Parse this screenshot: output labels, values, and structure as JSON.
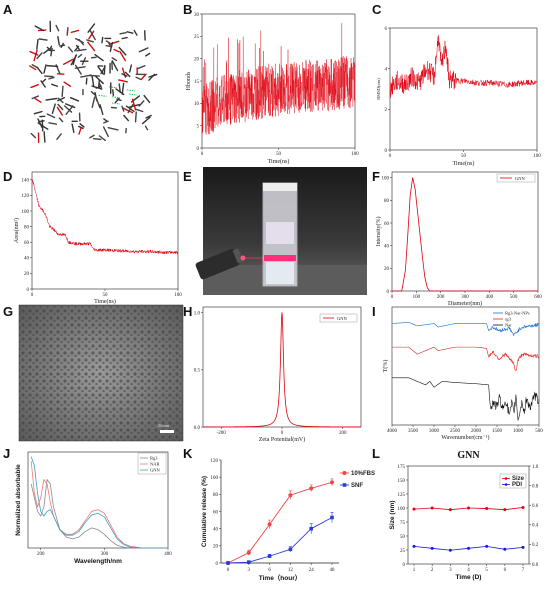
{
  "panels": {
    "A": {
      "label": "A"
    },
    "B": {
      "label": "B",
      "xlabel": "Time(ns)",
      "ylabel": "Hbonds",
      "xticks": [
        "0",
        "50",
        "100"
      ],
      "yticks": [
        "0",
        "5",
        "10",
        "15",
        "20",
        "25",
        "30"
      ]
    },
    "C": {
      "label": "C",
      "xlabel": "Time(ns)",
      "ylabel": "RMSD(nm)",
      "xticks": [
        "0",
        "50",
        "100"
      ],
      "yticks": [
        "0",
        "2",
        "4",
        "6"
      ]
    },
    "D": {
      "label": "D",
      "xlabel": "Time(ns)",
      "ylabel": "Area(nm²)",
      "xticks": [
        "0",
        "50",
        "100"
      ],
      "yticks": [
        "0",
        "20",
        "40",
        "60",
        "80",
        "100",
        "120",
        "140"
      ]
    },
    "E": {
      "label": "E"
    },
    "F": {
      "label": "F",
      "xlabel": "Diameter(nm)",
      "ylabel": "Intensity(%)",
      "legend": "GNN",
      "xticks": [
        "0",
        "100",
        "200",
        "300",
        "400",
        "500",
        "600"
      ],
      "yticks": [
        "0",
        "20",
        "40",
        "60",
        "80",
        "100"
      ]
    },
    "G": {
      "label": "G",
      "scalebar": "20 nm"
    },
    "H": {
      "label": "H",
      "xlabel": "Zeta Potential(mV)",
      "legend": "GNN",
      "xticks": [
        "-200",
        "0",
        "200"
      ],
      "yticks": [
        "0.0",
        "0.5",
        "1.0"
      ]
    },
    "I": {
      "label": "I",
      "xlabel": "Wavenumber(cm⁻¹)",
      "ylabel": "T(%)",
      "legend": [
        "Rg3-Nar-NPs",
        "rg3",
        "Nar"
      ],
      "xticks": [
        "4000",
        "3500",
        "3000",
        "2500",
        "2000",
        "1500",
        "1000",
        "500"
      ]
    },
    "J": {
      "label": "J",
      "xlabel": "Wavelength/nm",
      "ylabel": "Normalized absorbable",
      "legend": [
        "Rg3",
        "NAR",
        "GNN"
      ],
      "xticks": [
        "200",
        "300",
        "400"
      ]
    },
    "K": {
      "label": "K",
      "xlabel": "Time（hour）",
      "ylabel": "Cumulative release (%)",
      "legend": [
        "10%FBS",
        "SNF"
      ],
      "xticks": [
        "0",
        "3",
        "6",
        "12",
        "24",
        "48"
      ],
      "yticks": [
        "0",
        "20",
        "40",
        "60",
        "80",
        "100",
        "120"
      ]
    },
    "L": {
      "label": "L",
      "title": "GNN",
      "xlabel": "Time (D)",
      "ylabel": "Size (nm)",
      "legend": [
        "Size",
        "PDI"
      ],
      "xticks": [
        "1",
        "2",
        "3",
        "4",
        "5",
        "6",
        "7"
      ],
      "yticks_left": [
        "0",
        "25",
        "50",
        "75",
        "100",
        "125",
        "150",
        "175"
      ],
      "yticks_right": [
        "0.0",
        "0.2",
        "0.4",
        "0.6",
        "0.8",
        "1.0"
      ]
    }
  },
  "colors": {
    "red": "#e0000f",
    "blue": "#1a1ad6",
    "fbs": "#f04646",
    "snf": "#2a3fd6",
    "ir_blue": "#1e6fd9",
    "ir_red": "#e62020",
    "ir_black": "#111111",
    "uv_rg3": "#8a8a8a",
    "uv_nar": "#f07878",
    "uv_gnn": "#3aa0c0"
  },
  "chart_data": [
    {
      "panel": "B",
      "type": "line",
      "x": [
        0,
        10,
        20,
        30,
        40,
        50,
        60,
        70,
        80,
        90,
        100
      ],
      "y": [
        8,
        10,
        11,
        12,
        12.5,
        13,
        13.5,
        14,
        14,
        14.5,
        15
      ],
      "xlim": [
        0,
        100
      ],
      "ylim": [
        0,
        30
      ],
      "noise_band": 6
    },
    {
      "panel": "C",
      "type": "line",
      "x": [
        0,
        5,
        10,
        15,
        20,
        25,
        30,
        33,
        35,
        38,
        40,
        45,
        50,
        60,
        70,
        80,
        90,
        100
      ],
      "y": [
        3.0,
        3.4,
        3.2,
        3.6,
        3.3,
        4.0,
        3.6,
        5.6,
        4.0,
        5.2,
        3.5,
        3.4,
        3.4,
        3.3,
        3.3,
        3.2,
        3.3,
        3.3
      ],
      "xlim": [
        0,
        100
      ],
      "ylim": [
        0,
        6
      ]
    },
    {
      "panel": "D",
      "type": "line",
      "x": [
        0,
        1,
        3,
        5,
        8,
        10,
        12,
        15,
        18,
        20,
        23,
        25,
        28,
        30,
        35,
        40,
        42,
        45,
        50,
        60,
        70,
        80,
        90,
        100
      ],
      "y": [
        140,
        135,
        120,
        105,
        100,
        92,
        80,
        76,
        70,
        70,
        69,
        60,
        59,
        58,
        58,
        58,
        51,
        50,
        50,
        49,
        48,
        48,
        47,
        47
      ],
      "xlim": [
        0,
        100
      ],
      "ylim": [
        0,
        150
      ]
    },
    {
      "panel": "F",
      "type": "line",
      "x": [
        0,
        40,
        55,
        65,
        75,
        85,
        95,
        105,
        115,
        125,
        135,
        145,
        155,
        600
      ],
      "y": [
        0,
        0,
        18,
        50,
        85,
        100,
        90,
        70,
        50,
        30,
        12,
        3,
        0,
        0
      ],
      "xlim": [
        0,
        600
      ],
      "ylim": [
        0,
        105
      ]
    },
    {
      "panel": "H",
      "type": "line",
      "x": [
        -260,
        -40,
        -20,
        -10,
        -5,
        0,
        5,
        10,
        20,
        40,
        260
      ],
      "y": [
        0,
        0.01,
        0.05,
        0.2,
        0.55,
        1.0,
        0.55,
        0.2,
        0.05,
        0.01,
        0
      ],
      "xlim": [
        -260,
        260
      ],
      "ylim": [
        0,
        1.05
      ]
    },
    {
      "panel": "I",
      "type": "line",
      "series": [
        {
          "name": "Rg3-Nar-NPs",
          "x": [
            4000,
            3600,
            3400,
            3000,
            2900,
            2500,
            2000,
            1750,
            1700,
            1600,
            1450,
            1200,
            1100,
            1000,
            900,
            700,
            500
          ],
          "y": [
            0.86,
            0.87,
            0.84,
            0.86,
            0.83,
            0.86,
            0.86,
            0.86,
            0.8,
            0.83,
            0.8,
            0.82,
            0.76,
            0.8,
            0.83,
            0.84,
            0.85
          ]
        },
        {
          "name": "rg3",
          "x": [
            4000,
            3600,
            3400,
            3000,
            2900,
            2500,
            2000,
            1750,
            1700,
            1600,
            1450,
            1300,
            1100,
            1050,
            1000,
            900,
            700,
            500
          ],
          "y": [
            0.66,
            0.66,
            0.6,
            0.66,
            0.63,
            0.66,
            0.66,
            0.65,
            0.58,
            0.62,
            0.56,
            0.6,
            0.52,
            0.45,
            0.55,
            0.6,
            0.59,
            0.58
          ]
        },
        {
          "name": "Nar",
          "x": [
            4000,
            3600,
            3200,
            3100,
            3000,
            2800,
            2500,
            2000,
            1700,
            1640,
            1600,
            1500,
            1450,
            1350,
            1300,
            1200,
            1150,
            1100,
            1050,
            1000,
            900,
            850,
            800,
            700,
            600,
            500
          ],
          "y": [
            0.4,
            0.4,
            0.34,
            0.37,
            0.32,
            0.37,
            0.36,
            0.35,
            0.34,
            0.12,
            0.2,
            0.15,
            0.24,
            0.13,
            0.22,
            0.08,
            0.18,
            0.1,
            0.25,
            0.05,
            0.2,
            0.1,
            0.22,
            0.15,
            0.25,
            0.2
          ]
        }
      ],
      "xlim": [
        4000,
        500
      ],
      "ylim": [
        0,
        1
      ]
    },
    {
      "panel": "J",
      "type": "line",
      "series": [
        {
          "name": "Rg3",
          "x": [
            185,
            190,
            195,
            200,
            205,
            210,
            215,
            220,
            230,
            240,
            250,
            260,
            270,
            280,
            290,
            300,
            310,
            320,
            330,
            340,
            360,
            380,
            400
          ],
          "y": [
            0.7,
            0.55,
            0.4,
            0.35,
            0.45,
            0.75,
            0.7,
            0.45,
            0.2,
            0.12,
            0.1,
            0.12,
            0.18,
            0.22,
            0.2,
            0.15,
            0.08,
            0.03,
            0.01,
            0.0,
            0.0,
            0.0,
            0.0
          ]
        },
        {
          "name": "NAR",
          "x": [
            185,
            190,
            195,
            200,
            205,
            210,
            215,
            220,
            230,
            240,
            250,
            260,
            270,
            280,
            290,
            300,
            310,
            320,
            330,
            340,
            360,
            380,
            400
          ],
          "y": [
            0.95,
            0.6,
            0.45,
            0.55,
            0.75,
            0.7,
            0.5,
            0.35,
            0.2,
            0.15,
            0.15,
            0.2,
            0.3,
            0.4,
            0.42,
            0.38,
            0.25,
            0.12,
            0.05,
            0.02,
            0.0,
            0.0,
            0.0
          ]
        },
        {
          "name": "GNN",
          "x": [
            185,
            190,
            195,
            200,
            205,
            210,
            215,
            220,
            230,
            240,
            250,
            260,
            270,
            280,
            290,
            300,
            310,
            320,
            330,
            340,
            360,
            380,
            400
          ],
          "y": [
            1.0,
            0.9,
            0.6,
            0.4,
            0.35,
            0.4,
            0.42,
            0.35,
            0.2,
            0.14,
            0.14,
            0.18,
            0.28,
            0.36,
            0.38,
            0.34,
            0.22,
            0.1,
            0.04,
            0.01,
            0.0,
            0.0,
            0.0
          ]
        }
      ],
      "xlim": [
        180,
        400
      ],
      "ylim": [
        0,
        1.05
      ]
    },
    {
      "panel": "K",
      "type": "line",
      "categories": [
        "0",
        "3",
        "6",
        "12",
        "24",
        "48"
      ],
      "series": [
        {
          "name": "10%FBS",
          "values": [
            0,
            12,
            45,
            79,
            87,
            94
          ],
          "errors": [
            1,
            3,
            5,
            5,
            4,
            4
          ]
        },
        {
          "name": "SNF",
          "values": [
            0,
            1,
            8,
            16,
            40,
            53
          ],
          "errors": [
            1,
            1,
            2,
            3,
            6,
            6
          ]
        }
      ],
      "ylim": [
        0,
        120
      ]
    },
    {
      "panel": "L",
      "type": "line",
      "categories": [
        "1",
        "2",
        "3",
        "4",
        "5",
        "6",
        "7"
      ],
      "series": [
        {
          "name": "Size",
          "axis": "left",
          "values": [
            98,
            100,
            97,
            100,
            99,
            97,
            101
          ]
        },
        {
          "name": "PDI",
          "axis": "right",
          "values": [
            0.18,
            0.16,
            0.14,
            0.16,
            0.18,
            0.15,
            0.17
          ]
        }
      ],
      "ylim_left": [
        0,
        175
      ],
      "ylim_right": [
        0,
        1.0
      ]
    }
  ]
}
